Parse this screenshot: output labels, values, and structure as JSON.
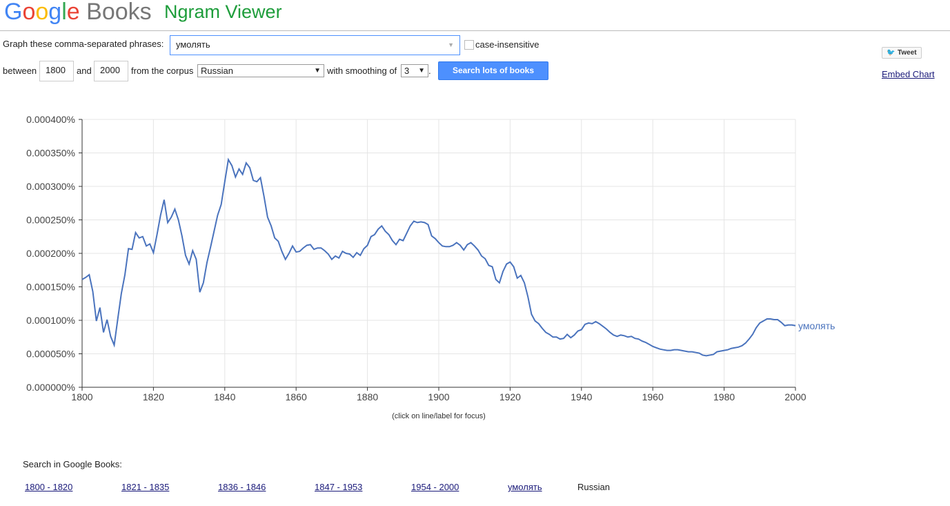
{
  "header": {
    "logo": "Google",
    "product": "Books",
    "title": "Ngram Viewer"
  },
  "form": {
    "phrases_label": "Graph these comma-separated phrases:",
    "phrases": "умолять",
    "case_insensitive": "case-insensitive",
    "between": "between",
    "start_year": "1800",
    "and": "and",
    "end_year": "2000",
    "corpus_label": "from the corpus",
    "corpus": "Russian",
    "smoothing_label": "with smoothing of",
    "smoothing": "3",
    "period": ".",
    "button": "Search lots of books"
  },
  "share": {
    "tweet": "Tweet",
    "embed": "Embed Chart"
  },
  "chart_data": {
    "type": "line",
    "note": "(click on line/label for focus)",
    "grid": true,
    "xlim": [
      1800,
      2000
    ],
    "xticks": [
      1800,
      1820,
      1840,
      1860,
      1880,
      1900,
      1920,
      1940,
      1960,
      1980,
      2000
    ],
    "ylim": [
      0,
      0.0004
    ],
    "yticks": [
      {
        "value": 0,
        "label": "0.000000%"
      },
      {
        "value": 5e-05,
        "label": "0.000050%"
      },
      {
        "value": 0.0001,
        "label": "0.000100%"
      },
      {
        "value": 0.00015,
        "label": "0.000150%"
      },
      {
        "value": 0.0002,
        "label": "0.000200%"
      },
      {
        "value": 0.00025,
        "label": "0.000250%"
      },
      {
        "value": 0.0003,
        "label": "0.000300%"
      },
      {
        "value": 0.00035,
        "label": "0.000350%"
      },
      {
        "value": 0.0004,
        "label": "0.000400%"
      }
    ],
    "x": [
      1800,
      1801,
      1802,
      1803,
      1804,
      1805,
      1806,
      1807,
      1808,
      1809,
      1810,
      1811,
      1812,
      1813,
      1814,
      1815,
      1816,
      1817,
      1818,
      1819,
      1820,
      1821,
      1822,
      1823,
      1824,
      1825,
      1826,
      1827,
      1828,
      1829,
      1830,
      1831,
      1832,
      1833,
      1834,
      1835,
      1836,
      1837,
      1838,
      1839,
      1840,
      1841,
      1842,
      1843,
      1844,
      1845,
      1846,
      1847,
      1848,
      1849,
      1850,
      1851,
      1852,
      1853,
      1854,
      1855,
      1856,
      1857,
      1858,
      1859,
      1860,
      1861,
      1862,
      1863,
      1864,
      1865,
      1866,
      1867,
      1868,
      1869,
      1870,
      1871,
      1872,
      1873,
      1874,
      1875,
      1876,
      1877,
      1878,
      1879,
      1880,
      1881,
      1882,
      1883,
      1884,
      1885,
      1886,
      1887,
      1888,
      1889,
      1890,
      1891,
      1892,
      1893,
      1894,
      1895,
      1896,
      1897,
      1898,
      1899,
      1900,
      1901,
      1902,
      1903,
      1904,
      1905,
      1906,
      1907,
      1908,
      1909,
      1910,
      1911,
      1912,
      1913,
      1914,
      1915,
      1916,
      1917,
      1918,
      1919,
      1920,
      1921,
      1922,
      1923,
      1924,
      1925,
      1926,
      1927,
      1928,
      1929,
      1930,
      1931,
      1932,
      1933,
      1934,
      1935,
      1936,
      1937,
      1938,
      1939,
      1940,
      1941,
      1942,
      1943,
      1944,
      1945,
      1946,
      1947,
      1948,
      1949,
      1950,
      1951,
      1952,
      1953,
      1954,
      1955,
      1956,
      1957,
      1958,
      1959,
      1960,
      1961,
      1962,
      1963,
      1964,
      1965,
      1966,
      1967,
      1968,
      1969,
      1970,
      1971,
      1972,
      1973,
      1974,
      1975,
      1976,
      1977,
      1978,
      1979,
      1980,
      1981,
      1982,
      1983,
      1984,
      1985,
      1986,
      1987,
      1988,
      1989,
      1990,
      1991,
      1992,
      1993,
      1994,
      1995,
      1996,
      1997,
      1998,
      1999,
      2000
    ],
    "series": [
      {
        "name": "умолять",
        "color": "#4a73bd",
        "values": [
          0.000161,
          0.000164,
          0.000168,
          0.000143,
          9.9e-05,
          0.000119,
          8.2e-05,
          0.000101,
          7.6e-05,
          6.3e-05,
          0.000102,
          0.00014,
          0.000168,
          0.000207,
          0.000206,
          0.000231,
          0.000223,
          0.000225,
          0.000211,
          0.000214,
          0.000201,
          0.000228,
          0.000257,
          0.00028,
          0.000246,
          0.000254,
          0.000266,
          0.00025,
          0.000226,
          0.000197,
          0.000184,
          0.000204,
          0.000191,
          0.000142,
          0.000156,
          0.000186,
          0.000209,
          0.000233,
          0.000257,
          0.000273,
          0.000307,
          0.00034,
          0.000331,
          0.000314,
          0.000326,
          0.000318,
          0.000335,
          0.000328,
          0.000309,
          0.000307,
          0.000313,
          0.000285,
          0.000254,
          0.000241,
          0.000223,
          0.000218,
          0.000203,
          0.000191,
          0.0002,
          0.000211,
          0.000202,
          0.000203,
          0.000208,
          0.000212,
          0.000213,
          0.000206,
          0.000208,
          0.000208,
          0.000204,
          0.000199,
          0.000191,
          0.000196,
          0.000193,
          0.000203,
          0.0002,
          0.000199,
          0.000194,
          0.000201,
          0.000197,
          0.000207,
          0.000212,
          0.000225,
          0.000228,
          0.000236,
          0.000241,
          0.000233,
          0.000228,
          0.000219,
          0.000213,
          0.000221,
          0.000219,
          0.00023,
          0.000241,
          0.000248,
          0.000246,
          0.000247,
          0.000246,
          0.000243,
          0.000226,
          0.000222,
          0.000216,
          0.000211,
          0.00021,
          0.00021,
          0.000212,
          0.000216,
          0.000212,
          0.000205,
          0.000213,
          0.000216,
          0.000211,
          0.000205,
          0.000196,
          0.000192,
          0.000182,
          0.00018,
          0.000161,
          0.000156,
          0.000173,
          0.000184,
          0.000187,
          0.00018,
          0.000163,
          0.000167,
          0.000156,
          0.000135,
          0.000109,
          9.9e-05,
          9.5e-05,
          8.8e-05,
          8.2e-05,
          7.9e-05,
          7.5e-05,
          7.5e-05,
          7.2e-05,
          7.3e-05,
          7.9e-05,
          7.4e-05,
          7.8e-05,
          8.4e-05,
          8.6e-05,
          9.4e-05,
          9.6e-05,
          9.5e-05,
          9.8e-05,
          9.5e-05,
          9.1e-05,
          8.7e-05,
          8.2e-05,
          7.8e-05,
          7.6e-05,
          7.8e-05,
          7.7e-05,
          7.5e-05,
          7.6e-05,
          7.3e-05,
          7.2e-05,
          6.9e-05,
          6.7e-05,
          6.4e-05,
          6.1e-05,
          5.9e-05,
          5.7e-05,
          5.6e-05,
          5.5e-05,
          5.5e-05,
          5.6e-05,
          5.6e-05,
          5.5e-05,
          5.4e-05,
          5.3e-05,
          5.3e-05,
          5.2e-05,
          5.1e-05,
          4.8e-05,
          4.7e-05,
          4.8e-05,
          4.9e-05,
          5.3e-05,
          5.4e-05,
          5.5e-05,
          5.6e-05,
          5.8e-05,
          5.9e-05,
          6e-05,
          6.2e-05,
          6.6e-05,
          7.2e-05,
          7.9e-05,
          8.9e-05,
          9.6e-05,
          9.9e-05,
          0.000102,
          0.000102,
          0.000101,
          0.000101,
          9.7e-05,
          9.2e-05,
          9.3e-05,
          9.3e-05,
          9.2e-05
        ]
      }
    ]
  },
  "footer": {
    "label": "Search in Google Books:",
    "links": [
      "1800 - 1820",
      "1821 - 1835",
      "1836 - 1846",
      "1847 - 1953",
      "1954 - 2000",
      "умолять"
    ],
    "corpus": "Russian"
  }
}
